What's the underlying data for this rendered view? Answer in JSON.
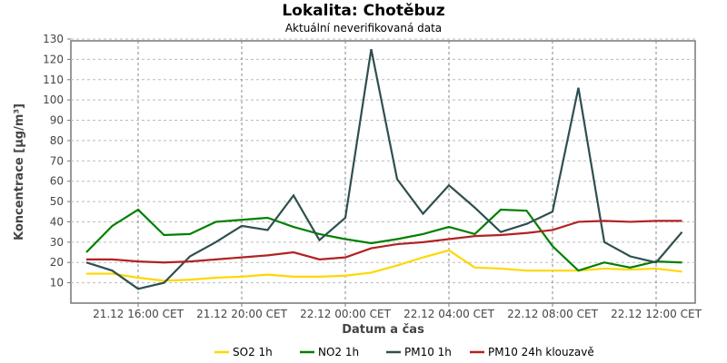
{
  "chart_data": {
    "type": "line",
    "title": "Lokalita: Chotěbuz",
    "subtitle": "Aktuální neverifikovaná data",
    "xlabel": "Datum a čas",
    "ylabel": "Koncentrace [µg/m³]",
    "ylim": [
      0,
      130
    ],
    "yticks": [
      10,
      20,
      30,
      40,
      50,
      60,
      70,
      80,
      90,
      100,
      110,
      120,
      130
    ],
    "x": [
      "21.12 14:00",
      "21.12 15:00",
      "21.12 16:00",
      "21.12 17:00",
      "21.12 18:00",
      "21.12 19:00",
      "21.12 20:00",
      "21.12 21:00",
      "21.12 22:00",
      "21.12 23:00",
      "22.12 00:00",
      "22.12 01:00",
      "22.12 02:00",
      "22.12 03:00",
      "22.12 04:00",
      "22.12 05:00",
      "22.12 06:00",
      "22.12 07:00",
      "22.12 08:00",
      "22.12 09:00",
      "22.12 10:00",
      "22.12 11:00",
      "22.12 12:00",
      "22.12 13:00"
    ],
    "xticks": [
      {
        "index": 2,
        "label": "21.12 16:00 CET"
      },
      {
        "index": 6,
        "label": "21.12 20:00 CET"
      },
      {
        "index": 10,
        "label": "22.12 00:00 CET"
      },
      {
        "index": 14,
        "label": "22.12 04:00 CET"
      },
      {
        "index": 18,
        "label": "22.12 08:00 CET"
      },
      {
        "index": 22,
        "label": "22.12 12:00 CET"
      }
    ],
    "grid": true,
    "legend_position": "bottom",
    "series": [
      {
        "name": "SO2 1h",
        "color": "#ffd700",
        "values": [
          14.5,
          14.5,
          12.5,
          11,
          11.5,
          12.5,
          13,
          14,
          13,
          13,
          13.5,
          15,
          18.5,
          22.5,
          26,
          17.5,
          17,
          16,
          16,
          16,
          17,
          16.5,
          17,
          15.5
        ]
      },
      {
        "name": "NO2 1h",
        "color": "#008000",
        "values": [
          25,
          38,
          46,
          33.5,
          34,
          40,
          41,
          42,
          37.5,
          34,
          31.5,
          29.5,
          31.5,
          34,
          37.5,
          34,
          46,
          45.5,
          28,
          16,
          20,
          17.5,
          20.5,
          20
        ]
      },
      {
        "name": "PM10 1h",
        "color": "#2f4f4f",
        "values": [
          20,
          16,
          7,
          10,
          23,
          30,
          38,
          36,
          53,
          31,
          42,
          125,
          61,
          44,
          58,
          47,
          35,
          39,
          45,
          106,
          30,
          23,
          20,
          35
        ]
      },
      {
        "name": "PM10 24h klouzavě",
        "color": "#b22222",
        "values": [
          21.5,
          21.5,
          20.5,
          20,
          20.5,
          21.5,
          22.5,
          23.5,
          25,
          21.5,
          22.5,
          27,
          29,
          30,
          31.5,
          33,
          33.5,
          34.5,
          36,
          40,
          40.5,
          40,
          40.5,
          40.5
        ]
      }
    ]
  }
}
